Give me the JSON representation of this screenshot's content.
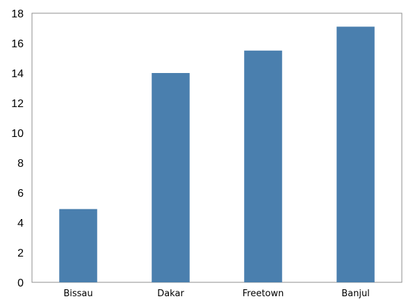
{
  "chart_data": {
    "type": "bar",
    "title": "",
    "xlabel": "",
    "ylabel": "",
    "categories": [
      "Bissau",
      "Dakar",
      "Freetown",
      "Banjul"
    ],
    "values": [
      4.9,
      14.0,
      15.5,
      17.1
    ],
    "ylim": [
      0,
      18
    ],
    "yticks": [
      "0",
      "2",
      "4",
      "6",
      "8",
      "10",
      "12",
      "14",
      "16",
      "18"
    ],
    "grid": false,
    "legend": "none",
    "bar_color": "#4a7fae",
    "axis_color": "#8c8c8c"
  }
}
